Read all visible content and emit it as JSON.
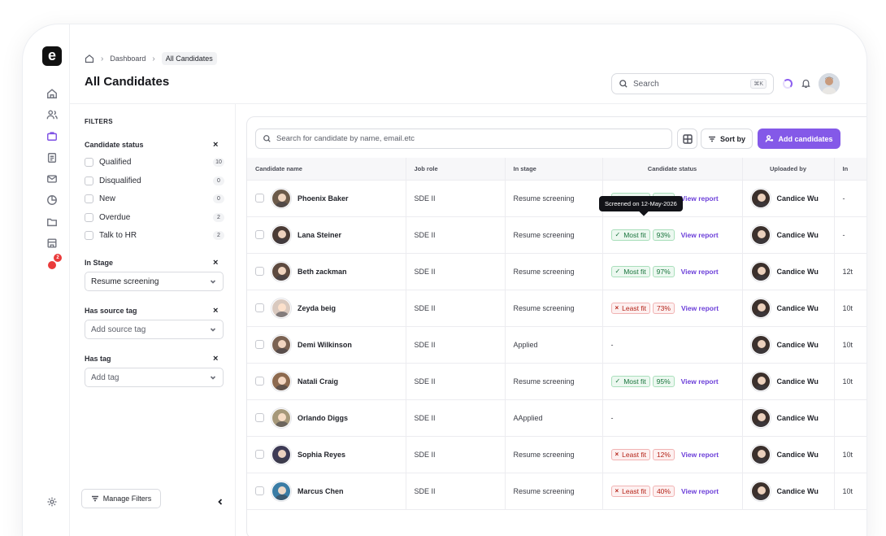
{
  "app": {
    "logo_letter": "e"
  },
  "rail": {
    "items": [
      {
        "icon": "home-icon"
      },
      {
        "icon": "users-icon"
      },
      {
        "icon": "briefcase-icon"
      },
      {
        "icon": "document-icon"
      },
      {
        "icon": "mail-icon"
      },
      {
        "icon": "pie-chart-icon"
      },
      {
        "icon": "folder-icon"
      },
      {
        "icon": "building-icon"
      },
      {
        "icon": "notification-icon",
        "badge": "2"
      },
      {
        "icon": "settings-icon"
      }
    ],
    "accent": "#7c4ee4"
  },
  "breadcrumb": {
    "parent": "Dashboard",
    "current": "All Candidates"
  },
  "page_title": "All Candidates",
  "header": {
    "search_placeholder": "Search",
    "search_shortcut": "⌘K"
  },
  "filters": {
    "title": "FILTERS",
    "candidate_status": {
      "title": "Candidate status",
      "options": [
        {
          "label": "Qualified",
          "count": "10"
        },
        {
          "label": "Disqualified",
          "count": "0"
        },
        {
          "label": "New",
          "count": "0"
        },
        {
          "label": "Overdue",
          "count": "2"
        },
        {
          "label": "Talk to HR",
          "count": "2"
        }
      ]
    },
    "in_stage": {
      "title": "In Stage",
      "value": "Resume screening"
    },
    "source_tag": {
      "title": "Has source tag",
      "placeholder": "Add source tag"
    },
    "tag": {
      "title": "Has tag",
      "placeholder": "Add tag"
    },
    "manage_label": "Manage Filters"
  },
  "toolbar": {
    "search_placeholder": "Search for candidate by name, email.etc",
    "sort_label": "Sort by",
    "add_label": "Add candidates",
    "add_color": "#8459e8"
  },
  "table": {
    "columns": [
      "Candidate name",
      "Job role",
      "In stage",
      "Candidate status",
      "Uploaded by",
      "In"
    ],
    "tooltip": "Screened on 12-May-2026",
    "view_report_label": "View report",
    "rows": [
      {
        "name": "Phoenix Baker",
        "role": "SDE II",
        "stage": "Resume screening",
        "fit": "Most fit",
        "fit_type": "good",
        "score": "91%",
        "uploader": "Candice Wu",
        "extra": "-",
        "avatar_color": "#6b5a4a"
      },
      {
        "name": "Lana Steiner",
        "role": "SDE II",
        "stage": "Resume screening",
        "fit": "Most fit",
        "fit_type": "good",
        "score": "93%",
        "uploader": "Candice Wu",
        "extra": "-",
        "avatar_color": "#4a3b35"
      },
      {
        "name": "Beth zackman",
        "role": "SDE II",
        "stage": "Resume screening",
        "fit": "Most fit",
        "fit_type": "good",
        "score": "97%",
        "uploader": "Candice Wu",
        "extra": "12t",
        "avatar_color": "#5d4a40"
      },
      {
        "name": "Zeyda beig",
        "role": "SDE II",
        "stage": "Resume screening",
        "fit": "Least fit",
        "fit_type": "bad",
        "score": "73%",
        "uploader": "Candice Wu",
        "extra": "10t",
        "avatar_color": "#d9c9bf"
      },
      {
        "name": "Demi Wilkinson",
        "role": "SDE II",
        "stage": "Applied",
        "fit": "",
        "fit_type": "none",
        "score": "",
        "uploader": "Candice Wu",
        "extra": "10t",
        "avatar_color": "#7a6252"
      },
      {
        "name": "Natali Craig",
        "role": "SDE II",
        "stage": "Resume screening",
        "fit": "Most fit",
        "fit_type": "good",
        "score": "95%",
        "uploader": "Candice Wu",
        "extra": "10t",
        "avatar_color": "#8d6a4f"
      },
      {
        "name": "Orlando Diggs",
        "role": "SDE II",
        "stage": "AApplied",
        "fit": "",
        "fit_type": "none",
        "score": "",
        "uploader": "Candice Wu",
        "extra": "",
        "avatar_color": "#a6987a"
      },
      {
        "name": "Sophia Reyes",
        "role": "SDE II",
        "stage": "Resume screening",
        "fit": "Least fit",
        "fit_type": "bad",
        "score": "12%",
        "uploader": "Candice Wu",
        "extra": "10t",
        "avatar_color": "#3d3a55"
      },
      {
        "name": "Marcus Chen",
        "role": "SDE II",
        "stage": "Resume screening",
        "fit": "Least fit",
        "fit_type": "bad",
        "score": "40%",
        "uploader": "Candice Wu",
        "extra": "10t",
        "avatar_color": "#3a7ca5"
      }
    ]
  }
}
